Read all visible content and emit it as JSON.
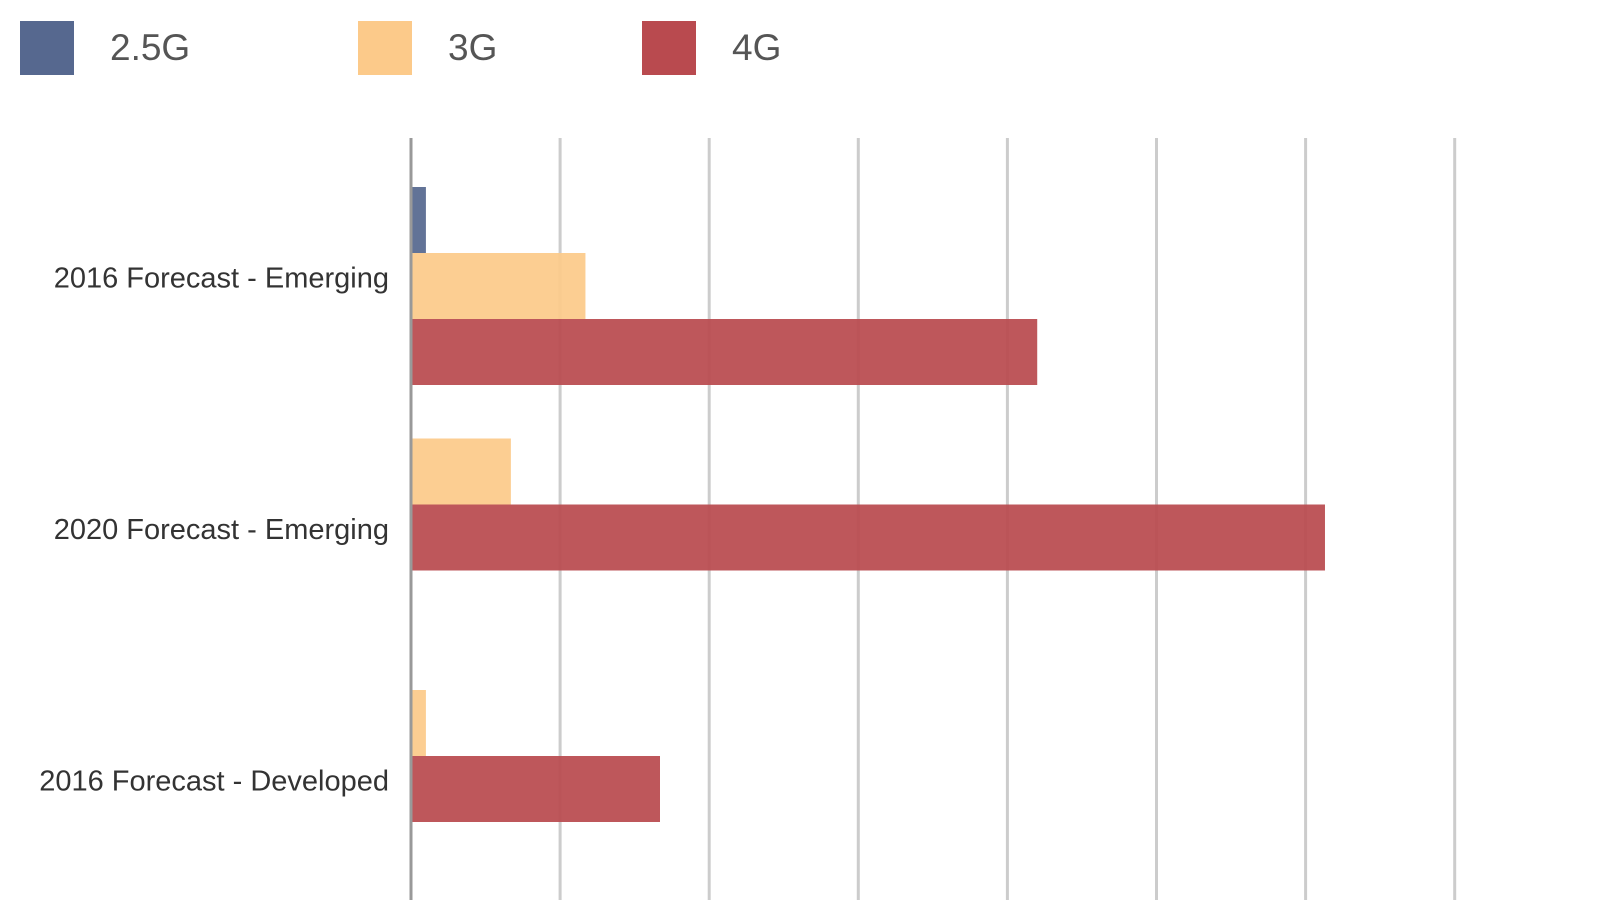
{
  "chart_data": {
    "type": "bar",
    "orientation": "horizontal",
    "categories": [
      "2016 Forecast - Emerging",
      "2020 Forecast - Emerging",
      "2016 Forecast - Developed"
    ],
    "series": [
      {
        "name": "2.5G",
        "color": "#56688f",
        "values": [
          0.1,
          0,
          0
        ]
      },
      {
        "name": "3G",
        "color": "#fcca8a",
        "values": [
          1.17,
          0.67,
          0.1
        ]
      },
      {
        "name": "4G",
        "color": "#b94a4f",
        "values": [
          4.2,
          6.13,
          1.67
        ]
      }
    ],
    "xlim": [
      0,
      7
    ],
    "grid": true,
    "legend": "top-left",
    "title": "",
    "xlabel": "",
    "ylabel": ""
  }
}
